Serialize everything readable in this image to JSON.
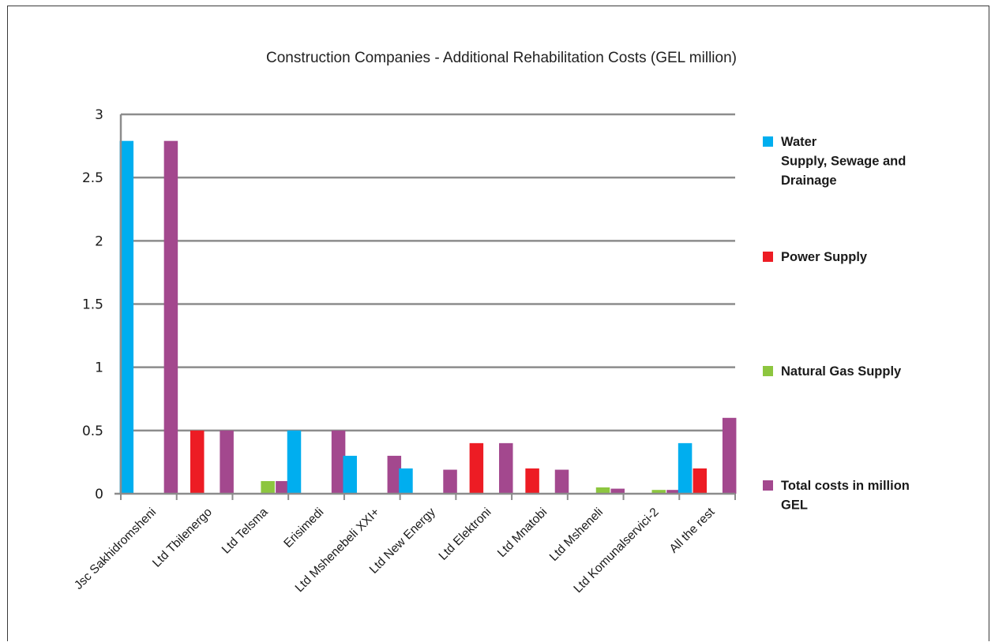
{
  "chart_data": {
    "type": "bar",
    "title": "Construction Companies - Additional Rehabilitation Costs (GEL million)",
    "xlabel": "",
    "ylabel": "",
    "ylim": [
      0,
      3
    ],
    "yticks": [
      0,
      0.5,
      1,
      1.5,
      2,
      2.5,
      3
    ],
    "ytick_labels": [
      "0",
      "0.5",
      "1",
      "1.5",
      "2",
      "2.5",
      "3"
    ],
    "grid": true,
    "legend_position": "right",
    "categories": [
      "Jsc Sakhidromsheni",
      "Ltd Tbilenergo",
      "Ltd Telsma",
      "Erisimedi",
      "Ltd Mshenebeli XXI+",
      "Ltd New Energy",
      "Ltd Elektroni",
      "Ltd Mnatobi",
      "Ltd Msheneli",
      "Ltd Komunalservici-2",
      "All the rest"
    ],
    "series": [
      {
        "name": "Water Supply, Sewage and Drainage",
        "legend_lines": [
          "Water",
          "Supply, Sewage and",
          "Drainage"
        ],
        "color": "#00aeef",
        "values": [
          2.79,
          0,
          0,
          0.5,
          0.3,
          0.2,
          0,
          0,
          0,
          0,
          0.4
        ]
      },
      {
        "name": "Power Supply",
        "legend_lines": [
          "Power Supply"
        ],
        "color": "#ed1c24",
        "values": [
          0,
          0.5,
          0,
          0,
          0,
          0,
          0.4,
          0.2,
          0,
          0,
          0.2
        ]
      },
      {
        "name": "Natural Gas Supply",
        "legend_lines": [
          "Natural Gas Supply"
        ],
        "color": "#8dc63f",
        "values": [
          0,
          0,
          0.1,
          0,
          0,
          0,
          0,
          0,
          0.05,
          0.03,
          0
        ]
      },
      {
        "name": "Total costs in million GEL",
        "legend_lines": [
          "Total costs in million",
          "GEL"
        ],
        "color": "#a3488e",
        "values": [
          2.79,
          0.5,
          0.1,
          0.5,
          0.3,
          0.19,
          0.4,
          0.19,
          0.04,
          0.03,
          0.6
        ]
      }
    ]
  }
}
